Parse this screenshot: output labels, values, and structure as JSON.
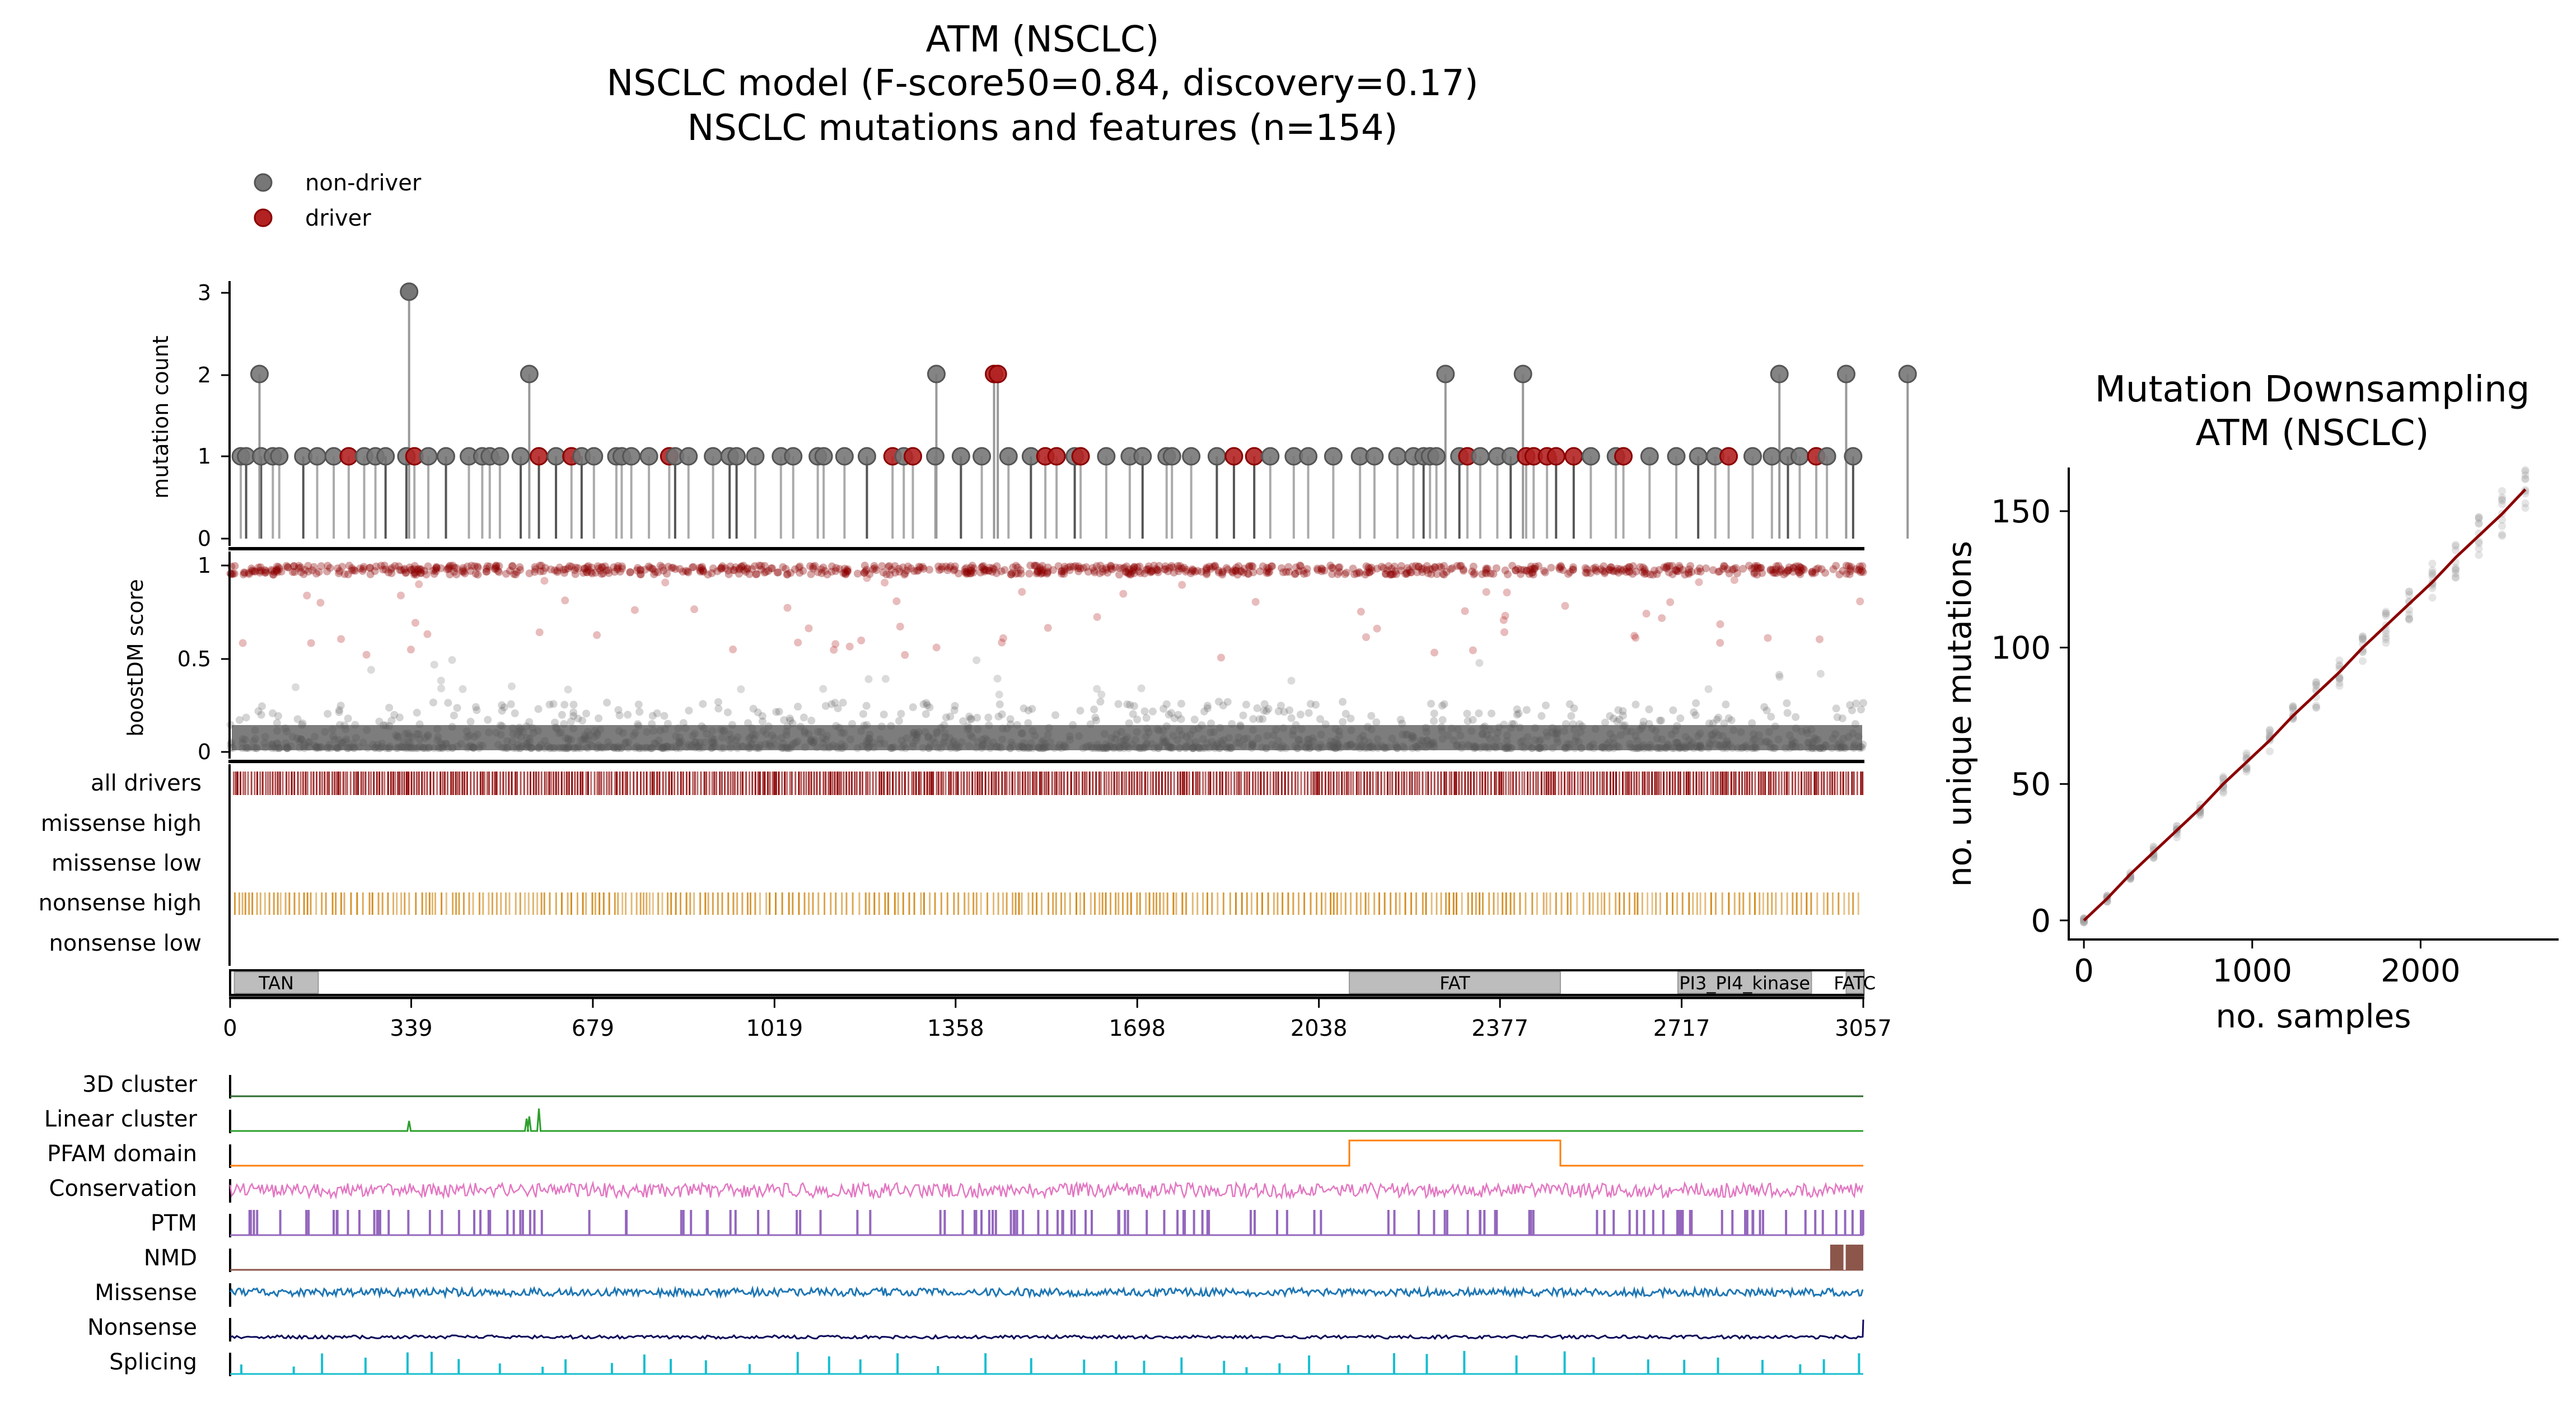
{
  "titles": {
    "main_line1": "ATM (NSCLC)",
    "main_line2": "NSCLC model (F-score50=0.84, discovery=0.17)",
    "main_line3": "NSCLC mutations and features (n=154)",
    "right_line1": "Mutation Downsampling",
    "right_line2": "ATM (NSCLC)"
  },
  "legend": {
    "nondriver": "non-driver",
    "driver": "driver"
  },
  "colors": {
    "driver": "#b22222",
    "nondriver": "#777777",
    "dark_red": "#8b0000",
    "nonsense": "#d08a1c",
    "domain_fill": "#bdbdbd",
    "cluster3d": "#2e6b2e",
    "linear": "#2ca02c",
    "pfam": "#ff7f0e",
    "conservation": "#e377c2",
    "ptm": "#9467bd",
    "nmd": "#8c564b",
    "missense": "#1f77b4",
    "nonsense_track": "#0a0a5a",
    "splicing": "#17becf"
  },
  "chart_data": [
    {
      "type": "scatter",
      "name": "needle",
      "ylabel": "mutation count",
      "ylim": [
        0,
        3
      ],
      "yticks": [
        "0",
        "1",
        "2",
        "3"
      ],
      "xlim": [
        0,
        3057
      ],
      "count2_positions": [
        55,
        560,
        1322,
        1430,
        1437,
        2275,
        2420,
        2900,
        3025,
        3140
      ],
      "count2_driver_positions": [
        1430,
        1437
      ],
      "count3_positions": [
        335
      ],
      "driver_positions": [
        42,
        52,
        60,
        68,
        247,
        305,
        560,
        578,
        625,
        750,
        770,
        930,
        1500,
        1550,
        1810,
        1820,
        1950,
        2000,
        2300,
        2410,
        2440,
        2470,
        2470,
        2960,
        3065
      ]
    },
    {
      "type": "scatter",
      "name": "boostdm",
      "ylabel": "boostDM score",
      "ylim": [
        0,
        1
      ],
      "yticks": [
        "0",
        "0.5",
        "1"
      ]
    },
    {
      "type": "table",
      "name": "consequence_tracks",
      "rows": [
        "all drivers",
        "missense high",
        "missense low",
        "nonsense high",
        "nonsense low"
      ]
    },
    {
      "type": "bar",
      "name": "domains",
      "xticks": [
        "0",
        "339",
        "679",
        "1019",
        "1358",
        "1698",
        "2038",
        "2377",
        "2717",
        "3057"
      ],
      "domains": [
        {
          "label": "TAN",
          "start": 8,
          "end": 165
        },
        {
          "label": "FAT",
          "start": 2095,
          "end": 2490
        },
        {
          "label": "PI3_PI4_kinase",
          "start": 2710,
          "end": 2960
        },
        {
          "label": "FATC",
          "start": 3025,
          "end": 3057
        }
      ]
    },
    {
      "type": "line",
      "name": "feature_tracks",
      "tracks": [
        "3D cluster",
        "Linear cluster",
        "PFAM domain",
        "Conservation",
        "PTM",
        "NMD",
        "Missense",
        "Nonsense",
        "Splicing"
      ]
    },
    {
      "type": "scatter",
      "name": "downsampling",
      "title": "Mutation Downsampling",
      "xlabel": "no. samples",
      "ylabel": "no. unique mutations",
      "xlim": [
        -90,
        2820
      ],
      "ylim": [
        -7,
        166
      ],
      "xticks": [
        0,
        1000,
        2000
      ],
      "yticks": [
        0,
        50,
        100,
        150
      ],
      "x": [
        0,
        138,
        276,
        414,
        552,
        690,
        828,
        966,
        1104,
        1242,
        1380,
        1518,
        1656,
        1794,
        1932,
        2070,
        2208,
        2346,
        2484,
        2622
      ],
      "y": [
        0,
        8,
        17,
        25,
        33,
        41,
        50,
        58,
        66,
        75,
        83,
        91,
        100,
        108,
        116,
        124,
        133,
        141,
        149,
        158
      ]
    }
  ]
}
